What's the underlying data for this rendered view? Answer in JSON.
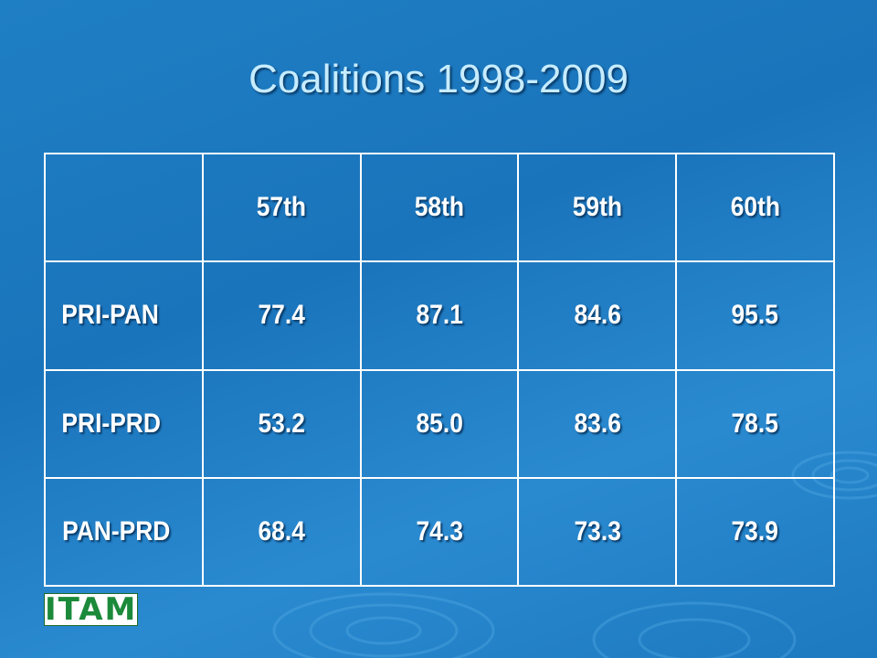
{
  "title": "Coalitions 1998-2009",
  "table": {
    "header": [
      "57th",
      "58th",
      "59th",
      "60th"
    ],
    "rows": [
      [
        "PRI-PAN",
        "77.4",
        "87.1",
        "84.6",
        "95.5"
      ],
      [
        "PRI-PRD",
        "53.2",
        "85.0",
        "83.6",
        "78.5"
      ],
      [
        "PAN-PRD",
        "68.4",
        "74.3",
        "73.3",
        "73.9"
      ]
    ]
  },
  "logo": "ITAM"
}
